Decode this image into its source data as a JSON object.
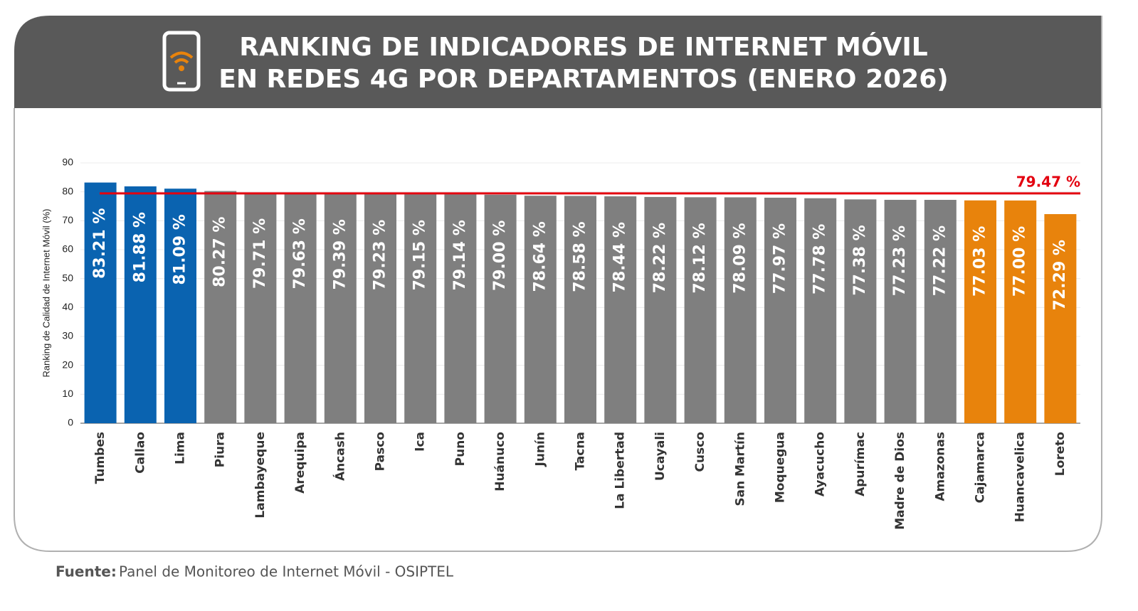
{
  "chart_data": {
    "type": "bar",
    "title": [
      "RANKING DE INDICADORES DE INTERNET MÓVIL",
      "EN REDES 4G POR DEPARTAMENTOS (ENERO 2026)"
    ],
    "y_label": "Ranking de Calidad de Internet Móvil (%)",
    "categories": [
      "Tumbes",
      "Callao",
      "Lima",
      "Piura",
      "Lambayeque",
      "Arequipa",
      "Áncash",
      "Pasco",
      "Ica",
      "Puno",
      "Huánuco",
      "Junín",
      "Tacna",
      "La Libertad",
      "Ucayali",
      "Cusco",
      "San Martín",
      "Moquegua",
      "Ayacucho",
      "Apurímac",
      "Madre de Dios",
      "Amazonas",
      "Cajamarca",
      "Huancavelica",
      "Loreto"
    ],
    "values": [
      83.21,
      81.88,
      81.09,
      80.27,
      79.71,
      79.63,
      79.39,
      79.23,
      79.15,
      79.14,
      79.0,
      78.64,
      78.58,
      78.44,
      78.22,
      78.12,
      78.09,
      77.97,
      77.78,
      77.38,
      77.23,
      77.22,
      77.03,
      77.0,
      72.29
    ],
    "value_labels": [
      "83.21 %",
      "81.88 %",
      "81.09 %",
      "80.27 %",
      "79.71 %",
      "79.63 %",
      "79.39 %",
      "79.23 %",
      "79.15 %",
      "79.14 %",
      "79.00 %",
      "78.64 %",
      "78.58 %",
      "78.44 %",
      "78.22 %",
      "78.12 %",
      "78.09 %",
      "77.97 %",
      "77.78 %",
      "77.38 %",
      "77.23 %",
      "77.22 %",
      "77.03 %",
      "77.00 %",
      "72.29 %"
    ],
    "colors": [
      "#0a63b0",
      "#0a63b0",
      "#0a63b0",
      "#7f7f7f",
      "#7f7f7f",
      "#7f7f7f",
      "#7f7f7f",
      "#7f7f7f",
      "#7f7f7f",
      "#7f7f7f",
      "#7f7f7f",
      "#7f7f7f",
      "#7f7f7f",
      "#7f7f7f",
      "#7f7f7f",
      "#7f7f7f",
      "#7f7f7f",
      "#7f7f7f",
      "#7f7f7f",
      "#7f7f7f",
      "#7f7f7f",
      "#7f7f7f",
      "#e8830c",
      "#e8830c",
      "#e8830c"
    ],
    "ylim": [
      0,
      90
    ],
    "yticks": [
      0,
      10,
      20,
      30,
      40,
      50,
      60,
      70,
      80,
      90
    ],
    "grid": true,
    "reference_line": {
      "value": 79.47,
      "label": "79.47 %",
      "color": "#e3000f"
    },
    "source": {
      "label": "Fuente:",
      "text": "Panel de Monitoreo de Internet Móvil - OSIPTEL"
    }
  }
}
